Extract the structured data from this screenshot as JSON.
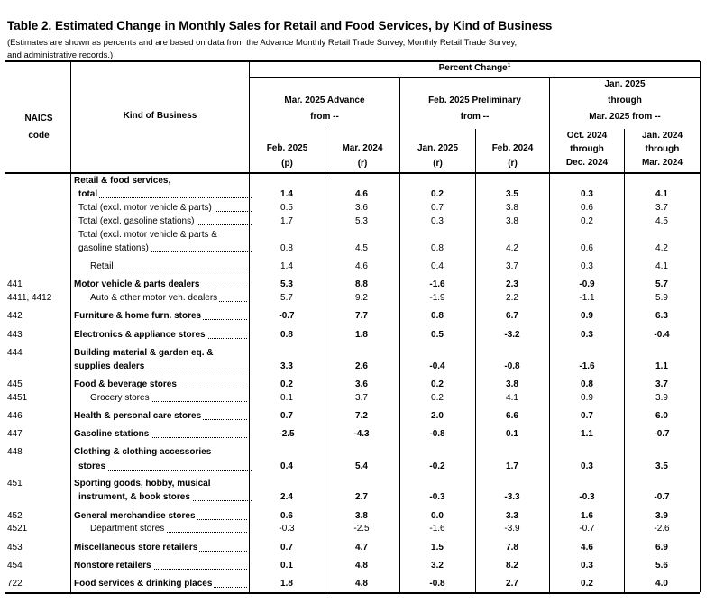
{
  "title": "Table 2.  Estimated Change in Monthly Sales for Retail and Food Services, by Kind of Business",
  "notes": [
    "(Estimates are shown as percents and are based on data from the Advance Monthly Retail Trade Survey,  Monthly Retail Trade Survey,",
    " and administrative records.)"
  ],
  "header": {
    "naics": [
      "NAICS",
      "code"
    ],
    "kind": "Kind of Business",
    "percent_change": "Percent Change",
    "footnote_mark": "1",
    "groups": [
      [
        "Mar. 2025 Advance",
        "from --"
      ],
      [
        "Feb. 2025 Preliminary",
        "from --"
      ],
      [
        "Jan. 2025",
        "through",
        "Mar. 2025 from --"
      ]
    ],
    "cols": [
      [
        "Feb. 2025",
        "(p)"
      ],
      [
        "Mar. 2024",
        "(r)"
      ],
      [
        "Jan. 2025",
        "(r)"
      ],
      [
        "Feb. 2024",
        "(r)"
      ],
      [
        "Oct. 2024",
        "through",
        "Dec. 2024"
      ],
      [
        "Jan. 2024",
        "through",
        "Mar. 2024"
      ]
    ]
  },
  "rows": [
    {
      "code": "",
      "kind": "Retail & food services,",
      "values": [
        "",
        "",
        "",
        "",
        "",
        ""
      ]
    },
    {
      "code": "",
      "kind": "total",
      "values": [
        "1.4",
        "4.6",
        "0.2",
        "3.5",
        "0.3",
        "4.1"
      ]
    },
    {
      "code": "",
      "kind": "Total (excl. motor vehicle & parts)",
      "values": [
        "0.5",
        "3.6",
        "0.7",
        "3.8",
        "0.6",
        "3.7"
      ]
    },
    {
      "code": "",
      "kind": "Total (excl. gasoline stations)",
      "values": [
        "1.7",
        "5.3",
        "0.3",
        "3.8",
        "0.2",
        "4.5"
      ]
    },
    {
      "code": "",
      "kind": "Total (excl. motor vehicle & parts &",
      "values": [
        "",
        "",
        "",
        "",
        "",
        ""
      ]
    },
    {
      "code": "",
      "kind": "gasoline stations)",
      "values": [
        "0.8",
        "4.5",
        "0.8",
        "4.2",
        "0.6",
        "4.2"
      ]
    },
    {
      "code": "",
      "kind": "Retail",
      "values": [
        "1.4",
        "4.6",
        "0.4",
        "3.7",
        "0.3",
        "4.1"
      ]
    },
    {
      "code": "441",
      "kind": "Motor vehicle & parts dealers",
      "values": [
        "5.3",
        "8.8",
        "-1.6",
        "2.3",
        "-0.9",
        "5.7"
      ]
    },
    {
      "code": "4411, 4412",
      "kind": "Auto & other motor veh. dealers",
      "values": [
        "5.7",
        "9.2",
        "-1.9",
        "2.2",
        "-1.1",
        "5.9"
      ]
    },
    {
      "code": "442",
      "kind": "Furniture & home furn. stores",
      "values": [
        "-0.7",
        "7.7",
        "0.8",
        "6.7",
        "0.9",
        "6.3"
      ]
    },
    {
      "code": "443",
      "kind": "Electronics & appliance stores",
      "values": [
        "0.8",
        "1.8",
        "0.5",
        "-3.2",
        "0.3",
        "-0.4"
      ]
    },
    {
      "code": "444",
      "kind": "Building material & garden eq. &",
      "values": [
        "",
        "",
        "",
        "",
        "",
        ""
      ]
    },
    {
      "code": "",
      "kind": "supplies dealers",
      "values": [
        "3.3",
        "2.6",
        "-0.4",
        "-0.8",
        "-1.6",
        "1.1"
      ]
    },
    {
      "code": "445",
      "kind": "Food & beverage stores",
      "values": [
        "0.2",
        "3.6",
        "0.2",
        "3.8",
        "0.8",
        "3.7"
      ]
    },
    {
      "code": "4451",
      "kind": "Grocery stores",
      "values": [
        "0.1",
        "3.7",
        "0.2",
        "4.1",
        "0.9",
        "3.9"
      ]
    },
    {
      "code": "446",
      "kind": "Health & personal care stores",
      "values": [
        "0.7",
        "7.2",
        "2.0",
        "6.6",
        "0.7",
        "6.0"
      ]
    },
    {
      "code": "447",
      "kind": "Gasoline stations",
      "values": [
        "-2.5",
        "-4.3",
        "-0.8",
        "0.1",
        "1.1",
        "-0.7"
      ]
    },
    {
      "code": "448",
      "kind": "Clothing & clothing accessories",
      "values": [
        "",
        "",
        "",
        "",
        "",
        ""
      ]
    },
    {
      "code": "",
      "kind": "stores",
      "values": [
        "0.4",
        "5.4",
        "-0.2",
        "1.7",
        "0.3",
        "3.5"
      ]
    },
    {
      "code": "451",
      "kind": "Sporting goods, hobby, musical",
      "values": [
        "",
        "",
        "",
        "",
        "",
        ""
      ]
    },
    {
      "code": "",
      "kind": "instrument, & book stores",
      "values": [
        "2.4",
        "2.7",
        "-0.3",
        "-3.3",
        "-0.3",
        "-0.7"
      ]
    },
    {
      "code": "452",
      "kind": "General merchandise stores",
      "values": [
        "0.6",
        "3.8",
        "0.0",
        "3.3",
        "1.6",
        "3.9"
      ]
    },
    {
      "code": "4521",
      "kind": "Department stores",
      "values": [
        "-0.3",
        "-2.5",
        "-1.6",
        "-3.9",
        "-0.7",
        "-2.6"
      ]
    },
    {
      "code": "453",
      "kind": "Miscellaneous store retailers",
      "values": [
        "0.7",
        "4.7",
        "1.5",
        "7.8",
        "4.6",
        "6.9"
      ]
    },
    {
      "code": "454",
      "kind": "Nonstore retailers",
      "values": [
        "0.1",
        "4.8",
        "3.2",
        "8.2",
        "0.3",
        "5.6"
      ]
    },
    {
      "code": "722",
      "kind": "Food services & drinking places",
      "values": [
        "1.8",
        "4.8",
        "-0.8",
        "2.7",
        "0.2",
        "4.0"
      ]
    }
  ]
}
